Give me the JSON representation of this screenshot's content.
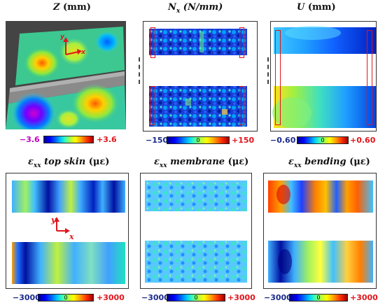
{
  "titles": {
    "z": {
      "sym": "Z",
      "unit": "(mm)"
    },
    "nx": {
      "sym": "N",
      "sub": "x",
      "unit": "(N/mm)"
    },
    "u": {
      "sym": "U",
      "unit": "(mm)"
    },
    "top": {
      "sym": "ε",
      "sub": "xx",
      "desc": "top skin",
      "unit": "(με)"
    },
    "mem": {
      "sym": "ε",
      "sub": "xx",
      "desc": "membrane",
      "unit": "(με)"
    },
    "bend": {
      "sym": "ε",
      "sub": "xx",
      "desc": "bending",
      "unit": "(με)"
    }
  },
  "colorbars": {
    "z": {
      "min": "−3.6",
      "zero": "",
      "max": "+3.6"
    },
    "nx": {
      "min": "−150",
      "zero": "0",
      "max": "+150"
    },
    "u": {
      "min": "−0.60",
      "zero": "0",
      "max": "+0.60"
    },
    "top": {
      "min": "−3000",
      "zero": "0",
      "max": "+3000"
    },
    "mem": {
      "min": "−3000",
      "zero": "0",
      "max": "+3000"
    },
    "bend": {
      "min": "−3000",
      "zero": "0",
      "max": "+3000"
    }
  },
  "axes": {
    "y": "y",
    "x": "x"
  },
  "colors": {
    "bar_negative": "#1a2a8c",
    "bar_positive": "#e0161c",
    "z_negative": "#c000c0",
    "axis_arrow": "#e0161c"
  }
}
